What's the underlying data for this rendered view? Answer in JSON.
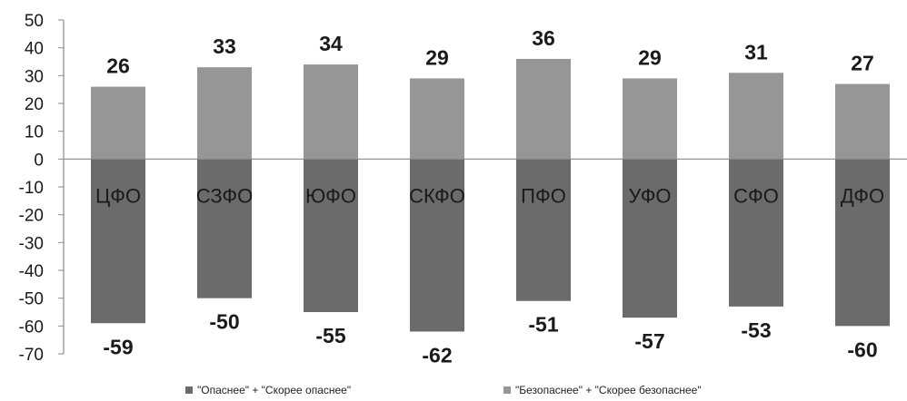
{
  "chart_data": {
    "type": "bar",
    "categories": [
      "ЦФО",
      "СЗФО",
      "ЮФО",
      "СКФО",
      "ПФО",
      "УФО",
      "СФО",
      "ДФО"
    ],
    "series": [
      {
        "name": "\"Опаснее\" + \"Скорее опаснее\"",
        "values": [
          -59,
          -50,
          -55,
          -62,
          -51,
          -57,
          -53,
          -60
        ]
      },
      {
        "name": "\"Безопаснее\" + \"Скорее безопаснее\"",
        "values": [
          26,
          33,
          34,
          29,
          36,
          29,
          31,
          27
        ]
      }
    ],
    "ylim": [
      -70,
      50
    ],
    "yticks": [
      50,
      40,
      30,
      20,
      10,
      0,
      -10,
      -20,
      -30,
      -40,
      -50,
      -60,
      -70
    ],
    "legend_position": "bottom",
    "grid": false,
    "colors": {
      "negative": "#6b6b6b",
      "positive": "#969696",
      "axis": "#8a8a8a"
    }
  }
}
